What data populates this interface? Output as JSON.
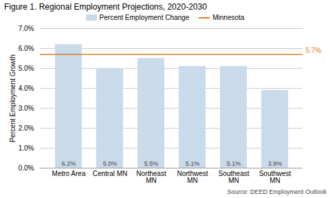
{
  "chart_data": {
    "type": "bar",
    "title": "Figure 1. Regional Employment Projections, 2020-2030",
    "categories": [
      "Metro Area",
      "Central MN",
      "Northeast\nMN",
      "Northwest\nMN",
      "Southeast\nMN",
      "Southwest\nMN"
    ],
    "series": [
      {
        "name": "Percent Employment Change",
        "color": "#c9daea",
        "values": [
          6.2,
          5.0,
          5.5,
          5.1,
          5.1,
          3.9
        ],
        "value_labels": [
          "6.2%",
          "5.0%",
          "5.5%",
          "5.1%",
          "5.1%",
          "3.9%"
        ]
      }
    ],
    "reference_lines": [
      {
        "name": "Minnesota",
        "value": 5.7,
        "label": "5.7%",
        "color": "#e07b20"
      }
    ],
    "ylabel": "Percent Employment Growth",
    "ylim": [
      0,
      7.0
    ],
    "yticks": [
      {
        "value": 0.0,
        "label": "0.0%"
      },
      {
        "value": 1.0,
        "label": "1.0%"
      },
      {
        "value": 2.0,
        "label": "2.0%"
      },
      {
        "value": 3.0,
        "label": "3.0%"
      },
      {
        "value": 4.0,
        "label": "4.0%"
      },
      {
        "value": 5.0,
        "label": "5.0%"
      },
      {
        "value": 6.0,
        "label": "6.0%"
      },
      {
        "value": 7.0,
        "label": "7.0%"
      }
    ],
    "grid": true,
    "data_labels": true,
    "legend": "top",
    "source": "Source: DEED Employment Outlook"
  }
}
